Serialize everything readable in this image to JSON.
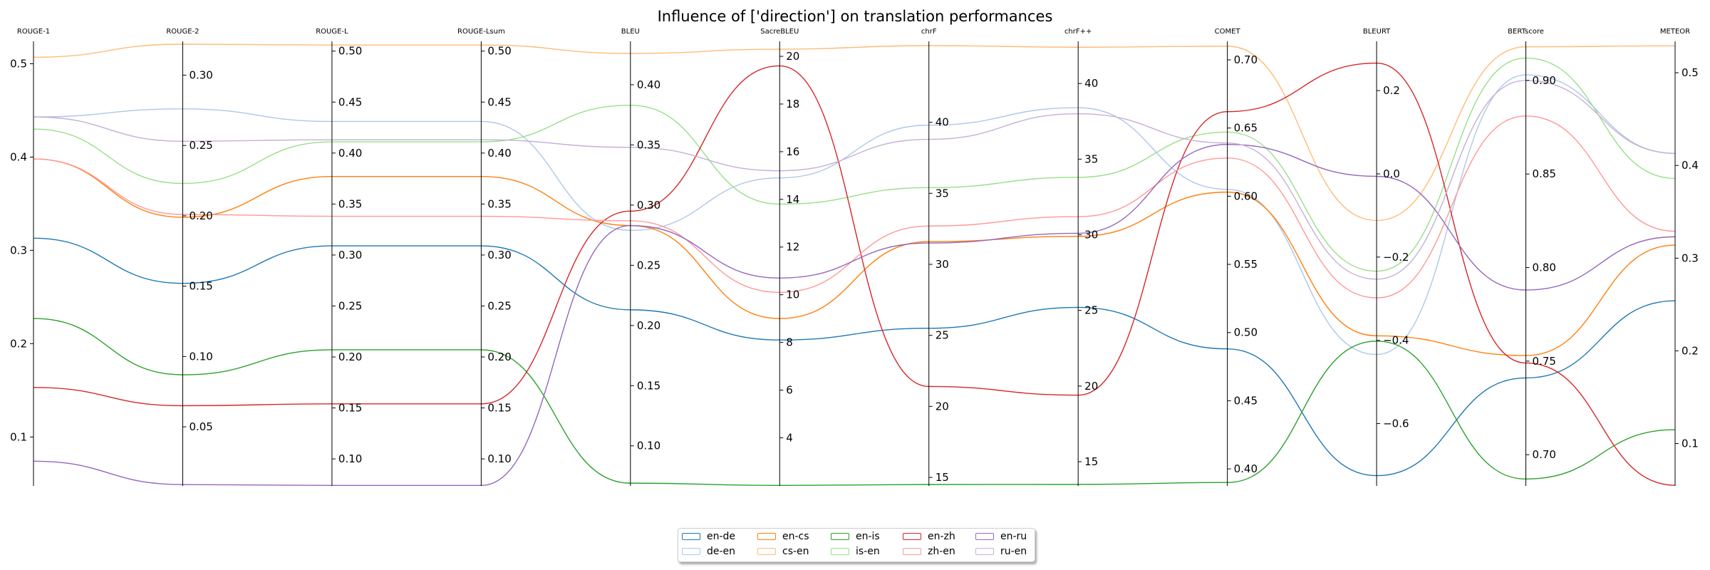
{
  "chart_data": {
    "type": "parallel_coordinates",
    "title": "Influence of ['direction'] on translation performances",
    "axes": [
      {
        "name": "ROUGE-1",
        "ticks": [
          0.1,
          0.2,
          0.3,
          0.4,
          0.5
        ],
        "tick_labels": [
          "0.1",
          "0.2",
          "0.3",
          "0.4",
          "0.5"
        ],
        "range": [
          0.0475,
          0.521
        ],
        "tick_side": "left"
      },
      {
        "name": "ROUGE-2",
        "ticks": [
          0.05,
          0.1,
          0.15,
          0.2,
          0.25,
          0.3
        ],
        "tick_labels": [
          "0.05",
          "0.10",
          "0.15",
          "0.20",
          "0.25",
          "0.30"
        ],
        "range": [
          0.008,
          0.322
        ],
        "tick_side": "right"
      },
      {
        "name": "ROUGE-L",
        "ticks": [
          0.1,
          0.15,
          0.2,
          0.25,
          0.3,
          0.35,
          0.4,
          0.45,
          0.5
        ],
        "tick_labels": [
          "0.10",
          "0.15",
          "0.20",
          "0.25",
          "0.30",
          "0.35",
          "0.40",
          "0.45",
          "0.50"
        ],
        "range": [
          0.0735,
          0.5068
        ],
        "tick_side": "right"
      },
      {
        "name": "ROUGE-Lsum",
        "ticks": [
          0.1,
          0.15,
          0.2,
          0.25,
          0.3,
          0.35,
          0.4,
          0.45,
          0.5
        ],
        "tick_labels": [
          "0.10",
          "0.15",
          "0.20",
          "0.25",
          "0.30",
          "0.35",
          "0.40",
          "0.45",
          "0.50"
        ],
        "range": [
          0.0735,
          0.5068
        ],
        "tick_side": "right"
      },
      {
        "name": "BLEU",
        "ticks": [
          0.1,
          0.15,
          0.2,
          0.25,
          0.3,
          0.35,
          0.4
        ],
        "tick_labels": [
          "0.10",
          "0.15",
          "0.20",
          "0.25",
          "0.30",
          "0.35",
          "0.40"
        ],
        "range": [
          0.0667,
          0.4337
        ],
        "tick_side": "right"
      },
      {
        "name": "SacreBLEU",
        "ticks": [
          4,
          6,
          8,
          10,
          12,
          14,
          16,
          18,
          20
        ],
        "tick_labels": [
          "4",
          "6",
          "8",
          "10",
          "12",
          "14",
          "16",
          "18",
          "20"
        ],
        "range": [
          1.98,
          20.51
        ],
        "tick_side": "right"
      },
      {
        "name": "chrF",
        "ticks": [
          15,
          20,
          25,
          30,
          35,
          40
        ],
        "tick_labels": [
          "15",
          "20",
          "25",
          "30",
          "35",
          "40"
        ],
        "range": [
          14.4,
          45.5
        ],
        "tick_side": "right"
      },
      {
        "name": "chrF++",
        "ticks": [
          15,
          20,
          25,
          30,
          35,
          40
        ],
        "tick_labels": [
          "15",
          "20",
          "25",
          "30",
          "35",
          "40"
        ],
        "range": [
          13.4,
          42.6
        ],
        "tick_side": "right"
      },
      {
        "name": "COMET",
        "ticks": [
          0.4,
          0.45,
          0.5,
          0.55,
          0.6,
          0.65,
          0.7
        ],
        "tick_labels": [
          "0.40",
          "0.45",
          "0.50",
          "0.55",
          "0.60",
          "0.65",
          "0.70"
        ],
        "range": [
          0.3875,
          0.7115
        ],
        "tick_side": "right"
      },
      {
        "name": "BLEURT",
        "ticks": [
          -0.6,
          -0.4,
          -0.2,
          0.0,
          0.2
        ],
        "tick_labels": [
          "−0.6",
          "−0.4",
          "−0.2",
          "0.0",
          "0.2"
        ],
        "range": [
          -0.7497,
          0.3115
        ],
        "tick_side": "right"
      },
      {
        "name": "BERTscore",
        "ticks": [
          0.7,
          0.75,
          0.8,
          0.85,
          0.9
        ],
        "tick_labels": [
          "0.70",
          "0.75",
          "0.80",
          "0.85",
          "0.90"
        ],
        "range": [
          0.6833,
          0.9194
        ],
        "tick_side": "right"
      },
      {
        "name": "METEOR",
        "ticks": [
          0.1,
          0.2,
          0.3,
          0.4,
          0.5
        ],
        "tick_labels": [
          "0.1",
          "0.2",
          "0.3",
          "0.4",
          "0.5"
        ],
        "range": [
          0.0543,
          0.5308
        ],
        "tick_side": "right"
      }
    ],
    "series": [
      {
        "name": "en-de",
        "color": "#1f77b4",
        "values": [
          0.313,
          0.152,
          0.309,
          0.309,
          0.213,
          8.1,
          25.5,
          25.2,
          0.488,
          -0.725,
          0.741,
          0.254
        ]
      },
      {
        "name": "de-en",
        "color": "#aec7e8",
        "values": [
          0.443,
          0.276,
          0.431,
          0.431,
          0.279,
          14.9,
          39.8,
          38.4,
          0.605,
          -0.434,
          0.903,
          0.413
        ]
      },
      {
        "name": "en-cs",
        "color": "#ff7f0e",
        "values": [
          0.398,
          0.199,
          0.377,
          0.377,
          0.283,
          9.0,
          31.6,
          29.9,
          0.603,
          -0.389,
          0.753,
          0.314
        ]
      },
      {
        "name": "cs-en",
        "color": "#ffbb78",
        "values": [
          0.507,
          0.322,
          0.506,
          0.506,
          0.426,
          20.3,
          45.4,
          42.4,
          0.71,
          -0.112,
          0.918,
          0.529
        ]
      },
      {
        "name": "en-is",
        "color": "#2ca02c",
        "values": [
          0.227,
          0.087,
          0.207,
          0.207,
          0.069,
          2.0,
          14.5,
          13.5,
          0.39,
          -0.402,
          0.687,
          0.115
        ]
      },
      {
        "name": "is-en",
        "color": "#98df8a",
        "values": [
          0.43,
          0.223,
          0.411,
          0.411,
          0.383,
          13.8,
          35.4,
          33.8,
          0.647,
          -0.234,
          0.912,
          0.386
        ]
      },
      {
        "name": "en-zh",
        "color": "#d62728",
        "values": [
          0.153,
          0.065,
          0.154,
          0.154,
          0.295,
          19.6,
          21.4,
          19.4,
          0.662,
          0.266,
          0.749,
          0.055
        ]
      },
      {
        "name": "zh-en",
        "color": "#ff9896",
        "values": [
          0.398,
          0.201,
          0.338,
          0.338,
          0.287,
          10.1,
          32.7,
          31.2,
          0.628,
          -0.298,
          0.881,
          0.329
        ]
      },
      {
        "name": "en-ru",
        "color": "#9467bd",
        "values": [
          0.074,
          0.009,
          0.074,
          0.074,
          0.283,
          10.7,
          31.5,
          30.1,
          0.638,
          -0.006,
          0.788,
          0.323
        ]
      },
      {
        "name": "ru-en",
        "color": "#c5b0d5",
        "values": [
          0.443,
          0.253,
          0.413,
          0.413,
          0.348,
          15.2,
          38.8,
          38.0,
          0.639,
          -0.253,
          0.9,
          0.413
        ]
      }
    ],
    "legend": {
      "placement": "bottom-center",
      "columns": 5
    }
  }
}
